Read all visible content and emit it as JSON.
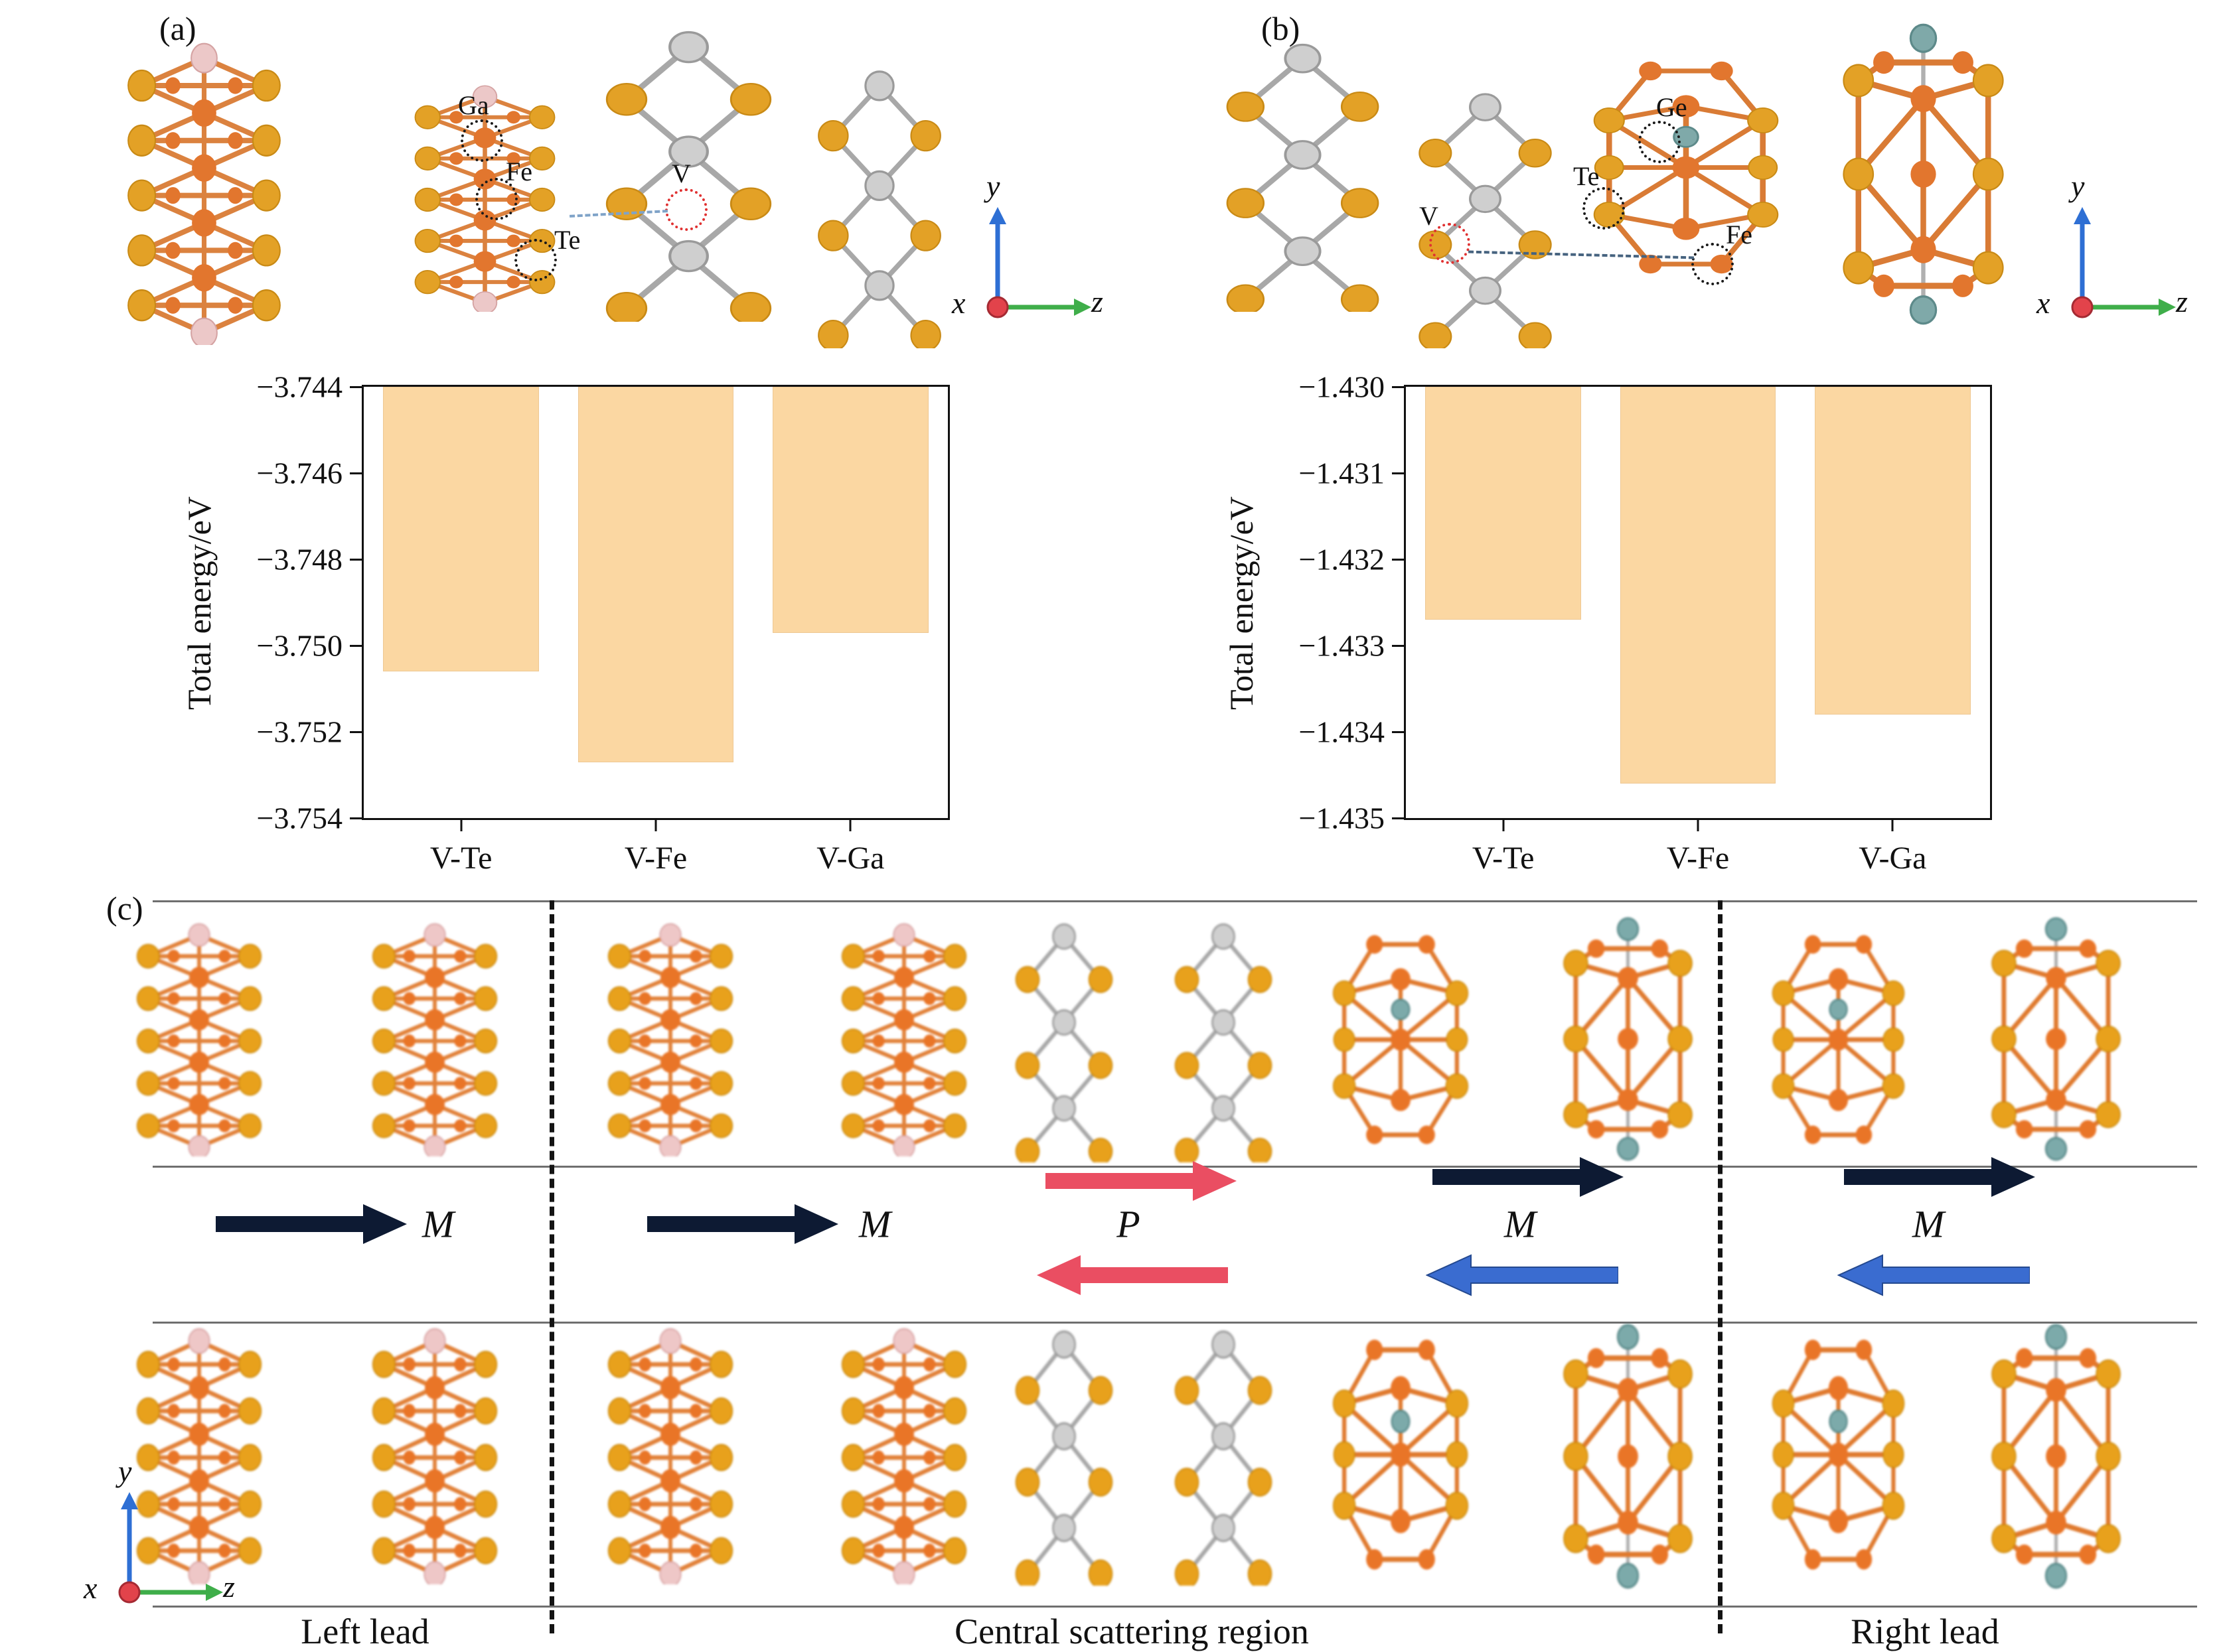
{
  "panel_a": {
    "label": "(a)",
    "atom_labels": {
      "ga": "Ga",
      "fe": "Fe",
      "te": "Te",
      "v": "V"
    }
  },
  "panel_b": {
    "label": "(b)",
    "atom_labels": {
      "ge": "Ge",
      "te": "Te",
      "v": "V",
      "fe": "Fe"
    }
  },
  "panel_c": {
    "label": "(c)",
    "regions": [
      "Left lead",
      "Central scattering region",
      "Right lead"
    ],
    "arrow_labels": {
      "left_m": "M",
      "central_m": "M",
      "p": "P",
      "central_right_m": "M",
      "right_m": "M"
    }
  },
  "axes": {
    "x": "x",
    "y": "y",
    "z": "z"
  },
  "colors": {
    "bar_fill": "#fbd7a2",
    "arrow_dark": "#0d1a33",
    "arrow_red": "#ea4e62",
    "arrow_blue": "#3a6cd0",
    "axis_x_dot": "#e2434b",
    "axis_y_arrow": "#2e6fd4",
    "axis_z_arrow": "#3fae4a"
  },
  "chart_data": [
    {
      "id": "a",
      "type": "bar",
      "title": "",
      "xlabel": "",
      "ylabel": "Total energy/eV",
      "categories": [
        "V-Te",
        "V-Fe",
        "V-Ga"
      ],
      "values": [
        -3.7506,
        -3.7527,
        -3.7497
      ],
      "ylim": [
        -3.754,
        -3.744
      ],
      "yticks": [
        -3.744,
        -3.746,
        -3.748,
        -3.75,
        -3.752,
        -3.754
      ],
      "ytick_labels": [
        "−3.744",
        "−3.746",
        "−3.748",
        "−3.750",
        "−3.752",
        "−3.754"
      ],
      "bar_color": "#fbd7a2",
      "grid": false,
      "baseline": "top"
    },
    {
      "id": "b",
      "type": "bar",
      "title": "",
      "xlabel": "",
      "ylabel": "Total energy/eV",
      "categories": [
        "V-Te",
        "V-Fe",
        "V-Ga"
      ],
      "values": [
        -1.4327,
        -1.4346,
        -1.4338
      ],
      "ylim": [
        -1.435,
        -1.43
      ],
      "yticks": [
        -1.43,
        -1.431,
        -1.432,
        -1.433,
        -1.434,
        -1.435
      ],
      "ytick_labels": [
        "−1.430",
        "−1.431",
        "−1.432",
        "−1.433",
        "−1.434",
        "−1.435"
      ],
      "bar_color": "#fbd7a2",
      "grid": false,
      "baseline": "top"
    }
  ]
}
